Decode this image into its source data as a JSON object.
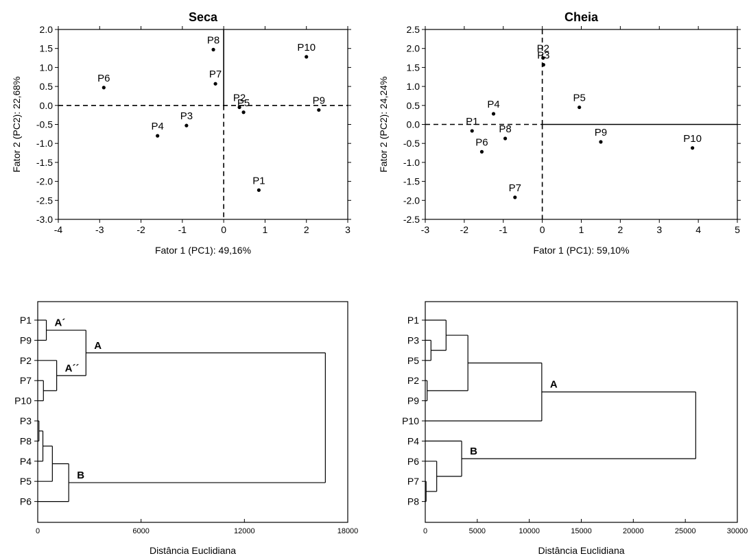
{
  "chart_data": [
    {
      "type": "scatter",
      "title": "Seca",
      "xlabel": "Fator 1 (PC1): 49,16%",
      "ylabel": "Fator 2 (PC2): 22,68%",
      "xlim": [
        -4,
        3
      ],
      "ylim": [
        -3,
        2
      ],
      "xticks": [
        "-4",
        "-3",
        "-2",
        "-1",
        "0",
        "1",
        "2",
        "3"
      ],
      "yticks": [
        "2.0",
        "1.5",
        "1.0",
        "0.5",
        "0.0",
        "-0.5",
        "-1.0",
        "-1.5",
        "-2.0",
        "-2.5",
        "-3.0"
      ],
      "points": [
        {
          "label": "P6",
          "x": -2.9,
          "y": 0.47
        },
        {
          "label": "P8",
          "x": -0.25,
          "y": 1.47
        },
        {
          "label": "P7",
          "x": -0.2,
          "y": 0.57
        },
        {
          "label": "P10",
          "x": 2.0,
          "y": 1.28
        },
        {
          "label": "P2",
          "x": 0.38,
          "y": -0.05
        },
        {
          "label": "P5",
          "x": 0.48,
          "y": -0.18
        },
        {
          "label": "P9",
          "x": 2.3,
          "y": -0.12
        },
        {
          "label": "P3",
          "x": -0.9,
          "y": -0.53
        },
        {
          "label": "P4",
          "x": -1.6,
          "y": -0.8
        },
        {
          "label": "P1",
          "x": 0.85,
          "y": -2.23
        }
      ]
    },
    {
      "type": "scatter",
      "title": "Cheia",
      "xlabel": "Fator 1 (PC1): 59,10%",
      "ylabel": "Fator 2 (PC2): 24,24%",
      "xlim": [
        -3,
        5
      ],
      "ylim": [
        -2.5,
        2.5
      ],
      "xticks": [
        "-3",
        "-2",
        "-1",
        "0",
        "1",
        "2",
        "3",
        "4",
        "5"
      ],
      "yticks": [
        "2.5",
        "2.0",
        "1.5",
        "1.0",
        "0.5",
        "0.0",
        "-0.5",
        "-1.0",
        "-1.5",
        "-2.0",
        "-2.5"
      ],
      "points": [
        {
          "label": "P2",
          "x": 0.02,
          "y": 1.75
        },
        {
          "label": "P3",
          "x": 0.03,
          "y": 1.57
        },
        {
          "label": "P4",
          "x": -1.25,
          "y": 0.28
        },
        {
          "label": "P1",
          "x": -1.8,
          "y": -0.17
        },
        {
          "label": "P8",
          "x": -0.95,
          "y": -0.37
        },
        {
          "label": "P6",
          "x": -1.55,
          "y": -0.72
        },
        {
          "label": "P5",
          "x": 0.95,
          "y": 0.45
        },
        {
          "label": "P9",
          "x": 1.5,
          "y": -0.46
        },
        {
          "label": "P10",
          "x": 3.85,
          "y": -0.62
        },
        {
          "label": "P7",
          "x": -0.7,
          "y": -1.92
        }
      ]
    },
    {
      "type": "dendrogram",
      "xlabel": "Distância Euclidiana",
      "xlim": [
        0,
        18000
      ],
      "xticks": [
        "0",
        "6000",
        "12000",
        "18000"
      ],
      "leaves": [
        "P1",
        "P9",
        "P2",
        "P7",
        "P10",
        "P3",
        "P8",
        "P4",
        "P5",
        "P6"
      ],
      "merges": [
        {
          "a": "L0",
          "b": "L1",
          "h": 500,
          "label": "A´"
        },
        {
          "a": "L3",
          "b": "L4",
          "h": 330
        },
        {
          "a": "L2",
          "b": "N1",
          "h": 1100,
          "label": "A´´"
        },
        {
          "a": "N0",
          "b": "N2",
          "h": 2800,
          "label": "A"
        },
        {
          "a": "L5",
          "b": "L6",
          "h": 70
        },
        {
          "a": "N4",
          "b": "L7",
          "h": 300
        },
        {
          "a": "N5",
          "b": "L8",
          "h": 850
        },
        {
          "a": "N6",
          "b": "L9",
          "h": 1800,
          "label": "B"
        },
        {
          "a": "N3",
          "b": "N7",
          "h": 16700
        }
      ]
    },
    {
      "type": "dendrogram",
      "xlabel": "Distância Euclidiana",
      "xlim": [
        0,
        30000
      ],
      "xticks": [
        "0",
        "5000",
        "10000",
        "15000",
        "20000",
        "25000",
        "30000"
      ],
      "leaves": [
        "P1",
        "P3",
        "P5",
        "P2",
        "P9",
        "P10",
        "P4",
        "P6",
        "P7",
        "P8"
      ],
      "merges": [
        {
          "a": "L1",
          "b": "L2",
          "h": 550
        },
        {
          "a": "L0",
          "b": "N0",
          "h": 2000
        },
        {
          "a": "L3",
          "b": "L4",
          "h": 180
        },
        {
          "a": "N1",
          "b": "N2",
          "h": 4100
        },
        {
          "a": "N3",
          "b": "L5",
          "h": 11200,
          "label": "A"
        },
        {
          "a": "L8",
          "b": "L9",
          "h": 80
        },
        {
          "a": "L7",
          "b": "N5",
          "h": 1100
        },
        {
          "a": "L6",
          "b": "N6",
          "h": 3500,
          "label": "B"
        },
        {
          "a": "N4",
          "b": "N7",
          "h": 26000
        }
      ]
    }
  ]
}
